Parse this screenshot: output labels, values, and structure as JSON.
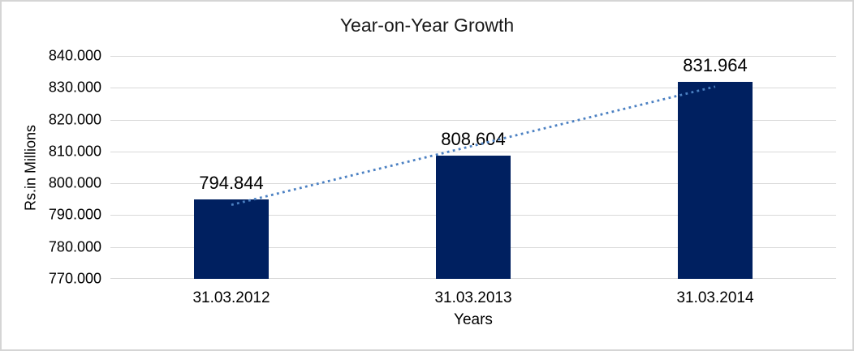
{
  "chart_data": {
    "type": "bar",
    "title": "Year-on-Year Growth",
    "xlabel": "Years",
    "ylabel": "Rs.in Millions",
    "categories": [
      "31.03.2012",
      "31.03.2013",
      "31.03.2014"
    ],
    "values": [
      794.844,
      808.604,
      831.964
    ],
    "data_labels": [
      "794.844",
      "808.604",
      "831.964"
    ],
    "ylim": [
      770,
      840
    ],
    "y_tick_step": 10,
    "y_tick_labels": [
      "770.000",
      "780.000",
      "790.000",
      "800.000",
      "810.000",
      "820.000",
      "830.000",
      "840.000"
    ],
    "grid": true,
    "legend": "none",
    "trendline": {
      "type": "linear",
      "style": "dotted",
      "color": "#4b80c2"
    },
    "colors": {
      "bar": "#002060",
      "gridline": "#d9d9d9",
      "text": "#000000",
      "frame_border": "#d5d5d5",
      "background": "#ffffff"
    }
  }
}
